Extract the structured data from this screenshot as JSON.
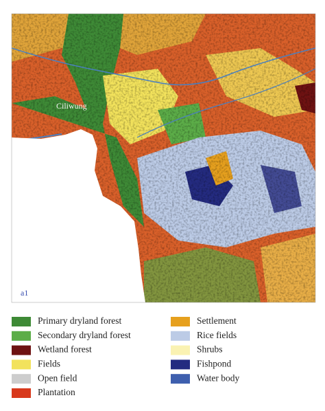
{
  "map": {
    "place_label": "Ciliwung",
    "panel_label": "a1"
  },
  "legend": [
    {
      "name": "Primary dryland forest",
      "color": "#3e8a36"
    },
    {
      "name": "Secondary dryland forest",
      "color": "#5cad48"
    },
    {
      "name": "Wetland forest",
      "color": "#6e1212"
    },
    {
      "name": "Fields",
      "color": "#f2e25c"
    },
    {
      "name": "Open field",
      "color": "#cdcdcd"
    },
    {
      "name": "Plantation",
      "color": "#d8391c"
    },
    {
      "name": "Settlement",
      "color": "#e6a01e"
    },
    {
      "name": "Rice fields",
      "color": "#bccbe6"
    },
    {
      "name": "Shrubs",
      "color": "#faf2b2"
    },
    {
      "name": "Fishpond",
      "color": "#242b80"
    },
    {
      "name": "Water body",
      "color": "#3e5fae"
    }
  ]
}
